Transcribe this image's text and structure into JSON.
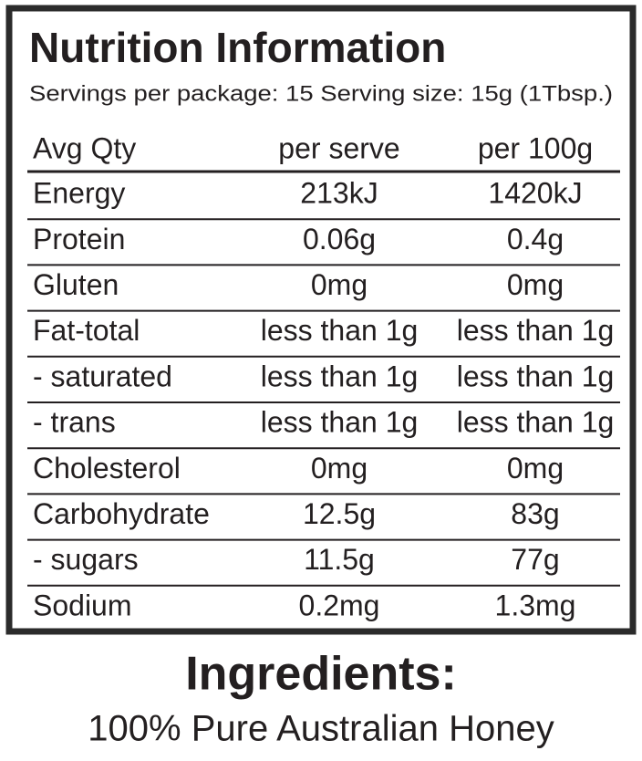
{
  "header": {
    "title": "Nutrition Information",
    "subtitle": "Servings per package: 15 Serving size: 15g (1Tbsp.)"
  },
  "table": {
    "columns": [
      "Avg Qty",
      "per serve",
      "per 100g"
    ],
    "rows": [
      [
        "Energy",
        "213kJ",
        "1420kJ"
      ],
      [
        "Protein",
        "0.06g",
        "0.4g"
      ],
      [
        "Gluten",
        "0mg",
        "0mg"
      ],
      [
        "Fat-total",
        "less than 1g",
        "less than 1g"
      ],
      [
        "- saturated",
        "less than 1g",
        "less than 1g"
      ],
      [
        "- trans",
        "less than 1g",
        "less than 1g"
      ],
      [
        "Cholesterol",
        "0mg",
        "0mg"
      ],
      [
        "Carbohydrate",
        "12.5g",
        "83g"
      ],
      [
        "- sugars",
        "11.5g",
        "77g"
      ],
      [
        "Sodium",
        "0.2mg",
        "1.3mg"
      ]
    ]
  },
  "ingredients": {
    "title": "Ingredients:",
    "text": "100% Pure Australian Honey"
  }
}
